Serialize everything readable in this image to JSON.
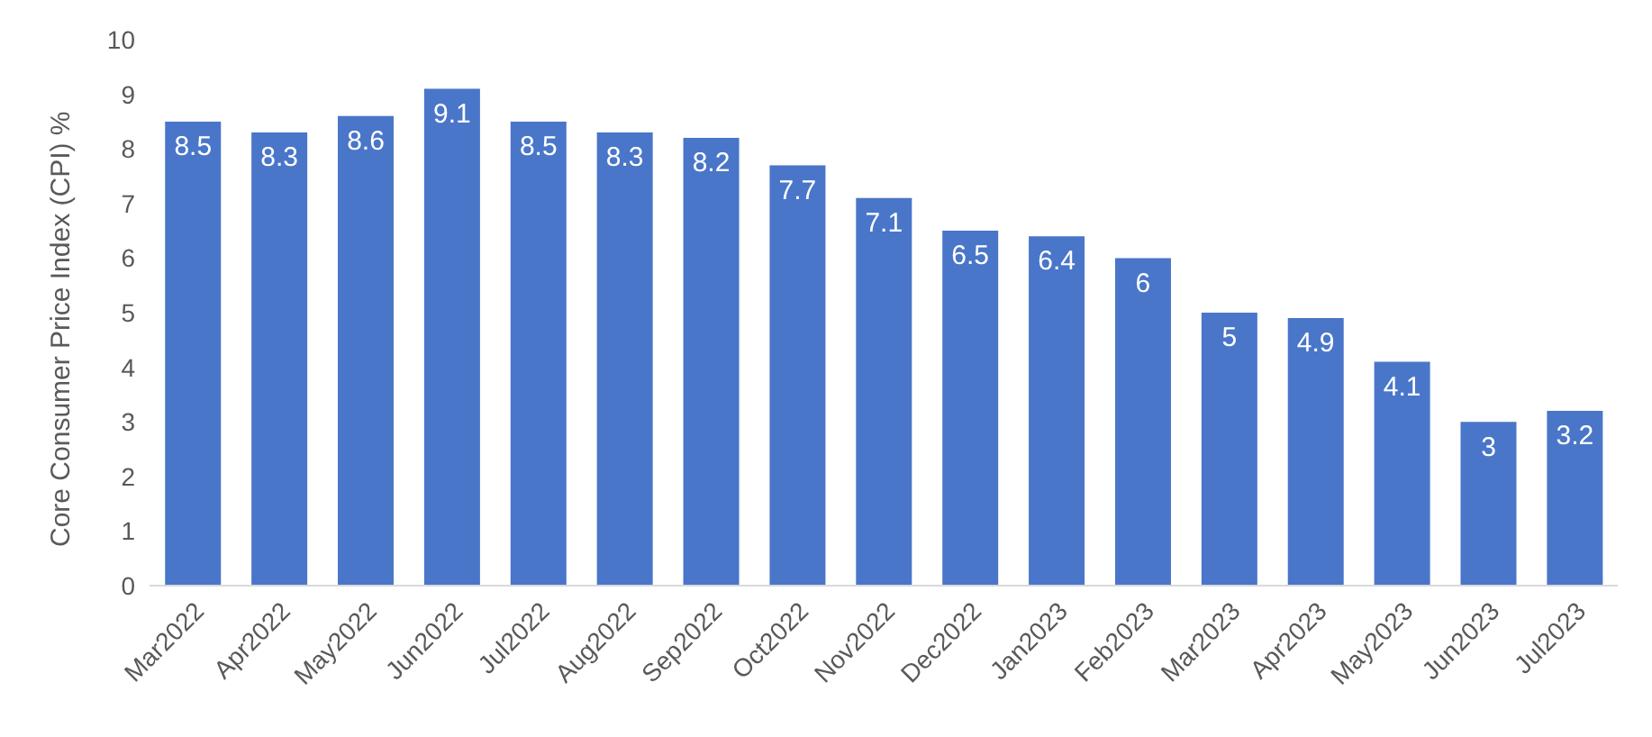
{
  "chart_data": {
    "type": "bar",
    "ylabel": "Core Consumer Price Index (CPI) %",
    "categories": [
      "Mar2022",
      "Apr2022",
      "May2022",
      "Jun2022",
      "Jul2022",
      "Aug2022",
      "Sep2022",
      "Oct2022",
      "Nov2022",
      "Dec2022",
      "Jan2023",
      "Feb2023",
      "Mar2023",
      "Apr2023",
      "May2023",
      "Jun2023",
      "Jul2023"
    ],
    "values": [
      8.5,
      8.3,
      8.6,
      9.1,
      8.5,
      8.3,
      8.2,
      7.7,
      7.1,
      6.5,
      6.4,
      6,
      5,
      4.9,
      4.1,
      3,
      3.2
    ],
    "color": "#4a76c9",
    "ylim": [
      0,
      10
    ],
    "yticks": [
      0,
      1,
      2,
      3,
      4,
      5,
      6,
      7,
      8,
      9,
      10
    ],
    "grid": false,
    "data_labels": true
  }
}
